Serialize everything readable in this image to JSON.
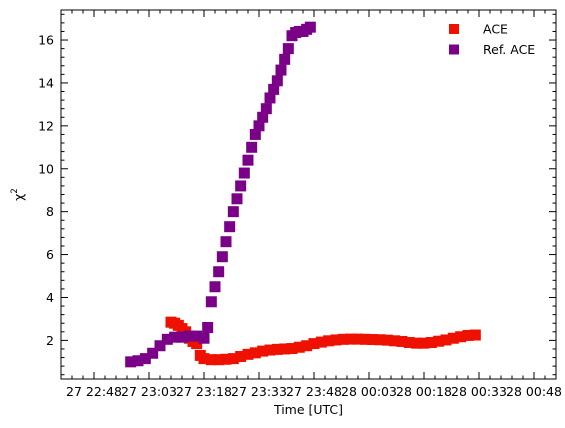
{
  "chart_data": {
    "type": "scatter",
    "xlabel": "Time [UTC]",
    "ylabel": "χ",
    "ylabel_superscript": "2",
    "x_range": [
      "27 22:39",
      "28 00:54"
    ],
    "ylim": [
      0.2,
      17.4
    ],
    "x_ticks": [
      {
        "t": "27 22:48",
        "label": "27 22:48"
      },
      {
        "t": "27 23:03",
        "label": "27 23:03"
      },
      {
        "t": "27 23:18",
        "label": "27 23:18"
      },
      {
        "t": "27 23:33",
        "label": "27 23:33"
      },
      {
        "t": "27 23:48",
        "label": "27 23:48"
      },
      {
        "t": "28 00:03",
        "label": "28 00:03"
      },
      {
        "t": "28 00:18",
        "label": "28 00:18"
      },
      {
        "t": "28 00:33",
        "label": "28 00:33"
      },
      {
        "t": "28 00:48",
        "label": "28 00:48"
      }
    ],
    "y_ticks": [
      2,
      4,
      6,
      8,
      10,
      12,
      14,
      16
    ],
    "y_tick_labels": [
      "2",
      "4",
      "6",
      "8",
      "10",
      "12",
      "14",
      "16"
    ],
    "legend_position": "top-right",
    "series": [
      {
        "name": "ACE",
        "color": "#ee1100",
        "marker": "square",
        "points": [
          [
            "27 23:09",
            2.85
          ],
          [
            "27 23:10",
            2.8
          ],
          [
            "27 23:11",
            2.7
          ],
          [
            "27 23:12",
            2.55
          ],
          [
            "27 23:13",
            2.4
          ],
          [
            "27 23:14",
            2.1
          ],
          [
            "27 23:15",
            1.95
          ],
          [
            "27 23:16",
            1.85
          ],
          [
            "27 23:17",
            1.3
          ],
          [
            "27 23:18",
            1.15
          ],
          [
            "27 23:20",
            1.1
          ],
          [
            "27 23:22",
            1.1
          ],
          [
            "27 23:24",
            1.12
          ],
          [
            "27 23:26",
            1.15
          ],
          [
            "27 23:28",
            1.25
          ],
          [
            "27 23:30",
            1.35
          ],
          [
            "27 23:32",
            1.42
          ],
          [
            "27 23:34",
            1.5
          ],
          [
            "27 23:36",
            1.55
          ],
          [
            "27 23:38",
            1.58
          ],
          [
            "27 23:40",
            1.6
          ],
          [
            "27 23:42",
            1.62
          ],
          [
            "27 23:44",
            1.68
          ],
          [
            "27 23:46",
            1.75
          ],
          [
            "27 23:48",
            1.85
          ],
          [
            "27 23:50",
            1.92
          ],
          [
            "27 23:52",
            1.98
          ],
          [
            "27 23:54",
            2.02
          ],
          [
            "27 23:56",
            2.05
          ],
          [
            "27 23:58",
            2.06
          ],
          [
            "28 00:00",
            2.06
          ],
          [
            "28 00:02",
            2.05
          ],
          [
            "28 00:04",
            2.04
          ],
          [
            "28 00:06",
            2.03
          ],
          [
            "28 00:08",
            2.01
          ],
          [
            "28 00:10",
            1.98
          ],
          [
            "28 00:12",
            1.95
          ],
          [
            "28 00:14",
            1.9
          ],
          [
            "28 00:16",
            1.87
          ],
          [
            "28 00:18",
            1.87
          ],
          [
            "28 00:20",
            1.9
          ],
          [
            "28 00:22",
            1.96
          ],
          [
            "28 00:24",
            2.02
          ],
          [
            "28 00:26",
            2.1
          ],
          [
            "28 00:28",
            2.17
          ],
          [
            "28 00:30",
            2.23
          ],
          [
            "28 00:32",
            2.25
          ]
        ]
      },
      {
        "name": "Ref. ACE",
        "color": "#7a0088",
        "marker": "square",
        "points": [
          [
            "27 22:58",
            1.0
          ],
          [
            "27 23:00",
            1.05
          ],
          [
            "27 23:02",
            1.15
          ],
          [
            "27 23:04",
            1.4
          ],
          [
            "27 23:06",
            1.75
          ],
          [
            "27 23:08",
            2.05
          ],
          [
            "27 23:10",
            2.15
          ],
          [
            "27 23:12",
            2.15
          ],
          [
            "27 23:14",
            2.2
          ],
          [
            "27 23:16",
            2.2
          ],
          [
            "27 23:18",
            2.1
          ],
          [
            "27 23:19",
            2.6
          ],
          [
            "27 23:20",
            3.8
          ],
          [
            "27 23:21",
            4.5
          ],
          [
            "27 23:22",
            5.2
          ],
          [
            "27 23:23",
            5.9
          ],
          [
            "27 23:24",
            6.6
          ],
          [
            "27 23:25",
            7.3
          ],
          [
            "27 23:26",
            8.0
          ],
          [
            "27 23:27",
            8.6
          ],
          [
            "27 23:28",
            9.2
          ],
          [
            "27 23:29",
            9.8
          ],
          [
            "27 23:30",
            10.4
          ],
          [
            "27 23:31",
            11.0
          ],
          [
            "27 23:32",
            11.6
          ],
          [
            "27 23:33",
            12.0
          ],
          [
            "27 23:34",
            12.4
          ],
          [
            "27 23:35",
            12.8
          ],
          [
            "27 23:36",
            13.3
          ],
          [
            "27 23:37",
            13.7
          ],
          [
            "27 23:38",
            14.1
          ],
          [
            "27 23:39",
            14.6
          ],
          [
            "27 23:40",
            15.1
          ],
          [
            "27 23:41",
            15.6
          ],
          [
            "27 23:42",
            16.2
          ],
          [
            "27 23:43",
            16.35
          ],
          [
            "27 23:44",
            16.4
          ],
          [
            "27 23:45",
            16.4
          ],
          [
            "27 23:46",
            16.5
          ],
          [
            "27 23:47",
            16.6
          ]
        ]
      }
    ]
  }
}
